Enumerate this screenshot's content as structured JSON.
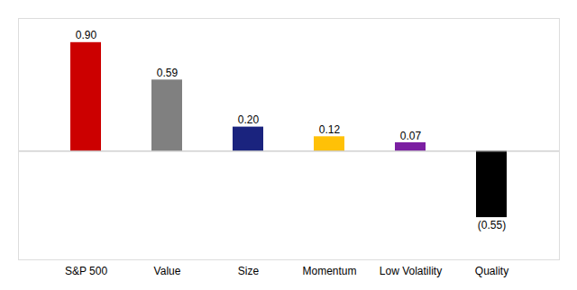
{
  "chart_data": {
    "type": "bar",
    "categories": [
      "S&P 500",
      "Value",
      "Size",
      "Momentum",
      "Low Volatility",
      "Quality"
    ],
    "values": [
      0.9,
      0.59,
      0.2,
      0.12,
      0.07,
      -0.55
    ],
    "value_labels": [
      "0.90",
      "0.59",
      "0.20",
      "0.12",
      "0.07",
      "(0.55)"
    ],
    "colors": [
      "#cc0000",
      "#808080",
      "#1a237e",
      "#ffc107",
      "#7b1fa2",
      "#000000"
    ],
    "ylim": [
      -0.9,
      1.1
    ],
    "data_labels": true,
    "tick_labels": "x",
    "grid": false
  }
}
